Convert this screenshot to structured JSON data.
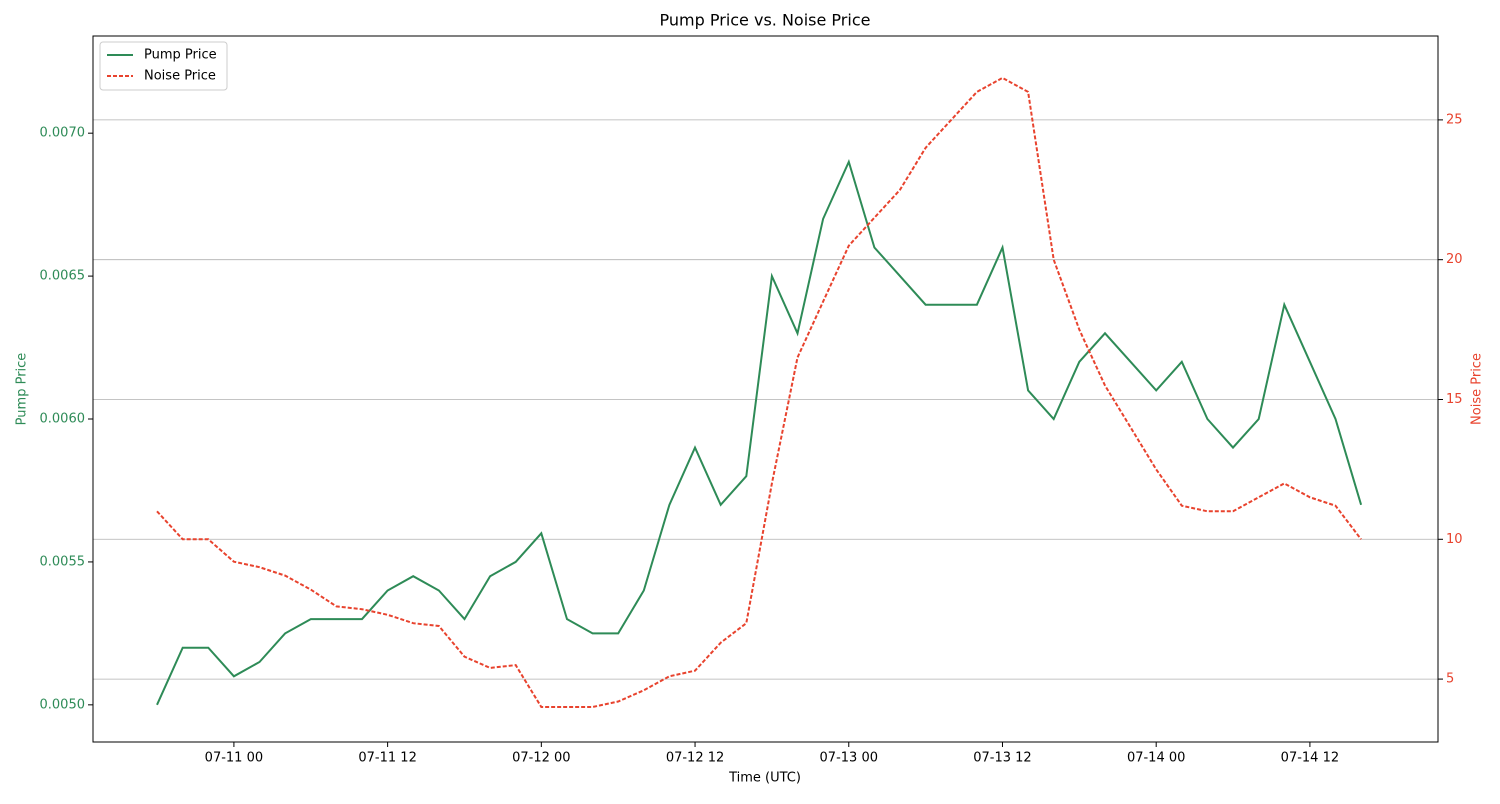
{
  "chart_data": {
    "type": "line",
    "title": "Pump Price vs. Noise Price",
    "xlabel": "Time (UTC)",
    "ylabel": "Pump Price",
    "y2label": "Noise Price",
    "x": [
      "07-10 18",
      "07-10 20",
      "07-10 22",
      "07-11 00",
      "07-11 02",
      "07-11 04",
      "07-11 06",
      "07-11 08",
      "07-11 10",
      "07-11 12",
      "07-11 14",
      "07-11 16",
      "07-11 18",
      "07-11 20",
      "07-11 22",
      "07-12 00",
      "07-12 02",
      "07-12 04",
      "07-12 06",
      "07-12 08",
      "07-12 10",
      "07-12 12",
      "07-12 14",
      "07-12 16",
      "07-12 18",
      "07-12 20",
      "07-12 22",
      "07-13 00",
      "07-13 02",
      "07-13 04",
      "07-13 06",
      "07-13 08",
      "07-13 10",
      "07-13 12",
      "07-13 14",
      "07-13 16",
      "07-13 18",
      "07-13 20",
      "07-13 22",
      "07-14 00",
      "07-14 02",
      "07-14 04",
      "07-14 06",
      "07-14 08",
      "07-14 10",
      "07-14 12",
      "07-14 14",
      "07-14 16"
    ],
    "series": [
      {
        "name": "Pump Price",
        "color": "#2e8b57",
        "linestyle": "solid",
        "axis": "y",
        "values": [
          0.005,
          0.0052,
          0.0052,
          0.0051,
          0.00515,
          0.00525,
          0.0053,
          0.0053,
          0.0053,
          0.0054,
          0.00545,
          0.0054,
          0.0053,
          0.00545,
          0.0055,
          0.0056,
          0.0053,
          0.00525,
          0.00525,
          0.0054,
          0.0057,
          0.0059,
          0.0057,
          0.0058,
          0.0065,
          0.0063,
          0.0067,
          0.0069,
          0.0066,
          0.0065,
          0.0064,
          0.0064,
          0.0064,
          0.0066,
          0.0061,
          0.006,
          0.0062,
          0.0063,
          0.0062,
          0.0061,
          0.0062,
          0.006,
          0.0059,
          0.006,
          0.0064,
          0.0062,
          0.006,
          0.0057
        ]
      },
      {
        "name": "Noise Price",
        "color": "#e8432e",
        "linestyle": "dashed",
        "axis": "y2",
        "values": [
          11,
          10,
          10,
          9.2,
          9,
          8.7,
          8.2,
          7.6,
          7.5,
          7.3,
          7.0,
          6.9,
          5.8,
          5.4,
          5.5,
          4.0,
          4.0,
          4.0,
          4.2,
          4.6,
          5.1,
          5.3,
          6.3,
          7.0,
          12.0,
          16.5,
          18.5,
          20.5,
          21.5,
          22.5,
          24.0,
          25.0,
          26.0,
          26.5,
          26.0,
          20.0,
          17.5,
          15.5,
          14.0,
          12.5,
          11.2,
          11.0,
          11.0,
          11.5,
          12.0,
          11.5,
          11.2,
          10.0
        ]
      }
    ],
    "xlim": [
      "07-10 13",
      "07-14 22"
    ],
    "xticks": [
      "07-11 00",
      "07-11 12",
      "07-12 00",
      "07-12 12",
      "07-13 00",
      "07-13 12",
      "07-14 00",
      "07-14 12"
    ],
    "ylim": [
      0.00487,
      0.00734
    ],
    "yticks": [
      {
        "value": 0.005,
        "label": "0.0050"
      },
      {
        "value": 0.0055,
        "label": "0.0055"
      },
      {
        "value": 0.006,
        "label": "0.0060"
      },
      {
        "value": 0.0065,
        "label": "0.0065"
      },
      {
        "value": 0.007,
        "label": "0.0070"
      }
    ],
    "y2lim": [
      2.75,
      28.0
    ],
    "y2ticks": [
      5,
      10,
      15,
      20,
      25
    ],
    "grid": "y2",
    "legend": "upper-left"
  }
}
